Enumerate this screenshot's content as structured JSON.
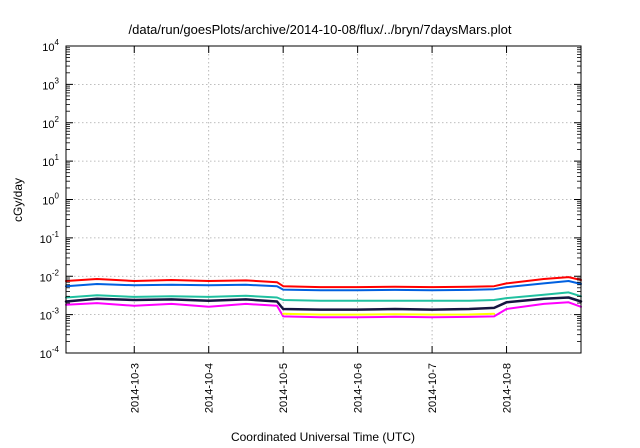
{
  "chart_data": {
    "type": "line",
    "title": "/data/run/goesPlots/archive/2014-10-08/flux/../bryn/7daysMars.plot",
    "xlabel": "Coordinated Universal Time (UTC)",
    "ylabel": "cGy/day",
    "y_scale": "log",
    "ylim": [
      0.0001,
      10000
    ],
    "y_ticks": [
      {
        "base": "10",
        "exp": "-4"
      },
      {
        "base": "10",
        "exp": "-3"
      },
      {
        "base": "10",
        "exp": "-2"
      },
      {
        "base": "10",
        "exp": "-1"
      },
      {
        "base": "10",
        "exp": "0"
      },
      {
        "base": "10",
        "exp": "1"
      },
      {
        "base": "10",
        "exp": "2"
      },
      {
        "base": "10",
        "exp": "3"
      },
      {
        "base": "10",
        "exp": "4"
      }
    ],
    "xlim": [
      "2014-10-02T02:00",
      "2014-10-09T00:00"
    ],
    "x_ticks": [
      "2014-10-3",
      "2014-10-4",
      "2014-10-5",
      "2014-10-6",
      "2014-10-7",
      "2014-10-8"
    ],
    "grid": true,
    "legend": "none",
    "series": [
      {
        "color": "#ff0000",
        "width": 2.0,
        "x": [
          "2014-10-02T02:00",
          "2014-10-02T12:00",
          "2014-10-03T00:00",
          "2014-10-03T12:00",
          "2014-10-04T00:00",
          "2014-10-04T12:00",
          "2014-10-04T22:00",
          "2014-10-05T00:00",
          "2014-10-05T12:00",
          "2014-10-06T00:00",
          "2014-10-06T12:00",
          "2014-10-07T00:00",
          "2014-10-07T12:00",
          "2014-10-07T20:00",
          "2014-10-08T00:00",
          "2014-10-08T12:00",
          "2014-10-08T20:00",
          "2014-10-09T00:00"
        ],
        "y": [
          0.0075,
          0.0085,
          0.0075,
          0.008,
          0.0075,
          0.0078,
          0.007,
          0.0055,
          0.0052,
          0.0052,
          0.0053,
          0.0052,
          0.0053,
          0.0055,
          0.0065,
          0.0085,
          0.0095,
          0.008
        ]
      },
      {
        "color": "#0060e0",
        "width": 2.0,
        "x": [
          "2014-10-02T02:00",
          "2014-10-02T12:00",
          "2014-10-03T00:00",
          "2014-10-03T12:00",
          "2014-10-04T00:00",
          "2014-10-04T12:00",
          "2014-10-04T22:00",
          "2014-10-05T00:00",
          "2014-10-05T12:00",
          "2014-10-06T00:00",
          "2014-10-06T12:00",
          "2014-10-07T00:00",
          "2014-10-07T12:00",
          "2014-10-07T20:00",
          "2014-10-08T00:00",
          "2014-10-08T12:00",
          "2014-10-08T20:00",
          "2014-10-09T00:00"
        ],
        "y": [
          0.0055,
          0.0063,
          0.0058,
          0.006,
          0.0058,
          0.006,
          0.0055,
          0.0045,
          0.0043,
          0.0043,
          0.0044,
          0.0043,
          0.0044,
          0.0046,
          0.0052,
          0.0065,
          0.0075,
          0.0063
        ]
      },
      {
        "color": "#20c0a0",
        "width": 2.0,
        "x": [
          "2014-10-02T02:00",
          "2014-10-02T12:00",
          "2014-10-03T00:00",
          "2014-10-03T12:00",
          "2014-10-04T00:00",
          "2014-10-04T12:00",
          "2014-10-04T22:00",
          "2014-10-05T00:00",
          "2014-10-05T12:00",
          "2014-10-06T00:00",
          "2014-10-06T12:00",
          "2014-10-07T00:00",
          "2014-10-07T12:00",
          "2014-10-07T20:00",
          "2014-10-08T00:00",
          "2014-10-08T12:00",
          "2014-10-08T20:00",
          "2014-10-09T00:00"
        ],
        "y": [
          0.0028,
          0.0032,
          0.0029,
          0.003,
          0.0029,
          0.0031,
          0.0028,
          0.0024,
          0.0023,
          0.0023,
          0.0023,
          0.0023,
          0.0023,
          0.0024,
          0.0027,
          0.0033,
          0.0038,
          0.003
        ]
      },
      {
        "color": "#151540",
        "width": 2.5,
        "x": [
          "2014-10-02T02:00",
          "2014-10-02T12:00",
          "2014-10-03T00:00",
          "2014-10-03T12:00",
          "2014-10-04T00:00",
          "2014-10-04T12:00",
          "2014-10-04T22:00",
          "2014-10-05T00:00",
          "2014-10-05T12:00",
          "2014-10-06T00:00",
          "2014-10-06T12:00",
          "2014-10-07T00:00",
          "2014-10-07T12:00",
          "2014-10-07T20:00",
          "2014-10-08T00:00",
          "2014-10-08T12:00",
          "2014-10-08T20:00",
          "2014-10-09T00:00"
        ],
        "y": [
          0.0022,
          0.0026,
          0.0024,
          0.0025,
          0.0023,
          0.0025,
          0.0022,
          0.0014,
          0.00135,
          0.00135,
          0.0014,
          0.00135,
          0.0014,
          0.0015,
          0.0021,
          0.0026,
          0.0028,
          0.0022
        ]
      },
      {
        "color": "#ff00ff",
        "width": 2.0,
        "x": [
          "2014-10-02T02:00",
          "2014-10-02T12:00",
          "2014-10-03T00:00",
          "2014-10-03T12:00",
          "2014-10-04T00:00",
          "2014-10-04T12:00",
          "2014-10-04T22:00",
          "2014-10-05T00:00",
          "2014-10-05T12:00",
          "2014-10-06T00:00",
          "2014-10-06T12:00",
          "2014-10-07T00:00",
          "2014-10-07T12:00",
          "2014-10-07T20:00",
          "2014-10-08T00:00",
          "2014-10-08T12:00",
          "2014-10-08T20:00",
          "2014-10-09T00:00"
        ],
        "y": [
          0.0018,
          0.002,
          0.0017,
          0.0019,
          0.0016,
          0.0019,
          0.0017,
          0.0009,
          0.00085,
          0.00085,
          0.00088,
          0.00085,
          0.00087,
          0.0009,
          0.0014,
          0.0019,
          0.0021,
          0.0016
        ]
      },
      {
        "color": "#ffff00",
        "width": 2.0,
        "x": [
          "2014-10-05T00:00",
          "2014-10-05T12:00",
          "2014-10-06T00:00",
          "2014-10-06T12:00",
          "2014-10-07T00:00",
          "2014-10-07T12:00",
          "2014-10-07T20:00"
        ],
        "y": [
          0.00105,
          0.001,
          0.001,
          0.00102,
          0.001,
          0.00101,
          0.00105
        ]
      }
    ]
  }
}
